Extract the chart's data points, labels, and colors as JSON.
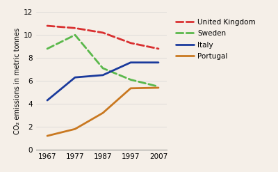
{
  "years": [
    1967,
    1977,
    1987,
    1997,
    2007
  ],
  "series": {
    "United Kingdom": {
      "values": [
        10.8,
        10.6,
        10.2,
        9.3,
        8.8
      ],
      "color": "#d93030",
      "linestyle": "--",
      "linewidth": 2.0,
      "dashes": [
        6,
        3
      ]
    },
    "Sweden": {
      "values": [
        8.8,
        10.0,
        7.1,
        6.1,
        5.5
      ],
      "color": "#5ab84b",
      "linestyle": "--",
      "linewidth": 2.0,
      "dashes": [
        6,
        3
      ]
    },
    "Italy": {
      "values": [
        4.3,
        6.3,
        6.5,
        7.6,
        7.6
      ],
      "color": "#1a3a9c",
      "linestyle": "-",
      "linewidth": 2.0,
      "dashes": null
    },
    "Portugal": {
      "values": [
        1.2,
        1.8,
        3.2,
        5.35,
        5.4
      ],
      "color": "#c97820",
      "linestyle": "-",
      "linewidth": 2.0,
      "dashes": null
    }
  },
  "ylabel": "CO₂ emissions in metric tonnes",
  "ylim": [
    0,
    12
  ],
  "yticks": [
    0,
    2,
    4,
    6,
    8,
    10,
    12
  ],
  "xlim": [
    1963,
    2010
  ],
  "xticks": [
    1967,
    1977,
    1987,
    1997,
    2007
  ],
  "background_color": "#f5efe8",
  "legend_order": [
    "United Kingdom",
    "Sweden",
    "Italy",
    "Portugal"
  ],
  "ylabel_fontsize": 7.0,
  "tick_fontsize": 7.5,
  "legend_fontsize": 7.5
}
